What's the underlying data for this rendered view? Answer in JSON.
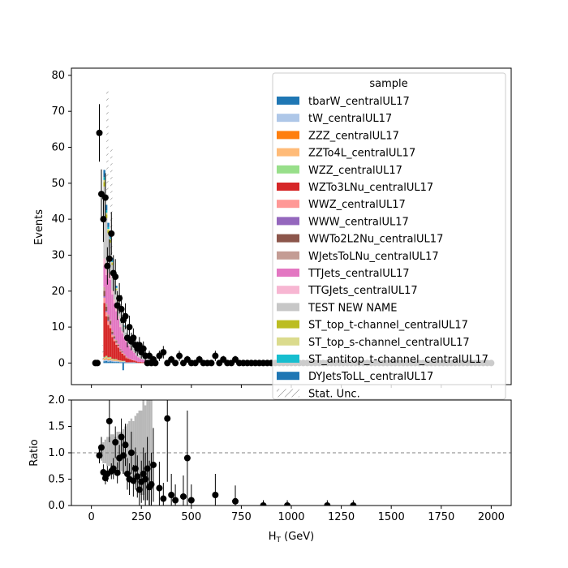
{
  "chart_data": [
    {
      "type": "bar",
      "panel": "main",
      "xlabel": "",
      "ylabel": "Events",
      "xlim": [
        -100,
        2100
      ],
      "ylim": [
        -6,
        82
      ],
      "xticks": [
        0,
        250,
        500,
        750,
        1000,
        1250,
        1500,
        1750,
        2000
      ],
      "yticks": [
        0,
        10,
        20,
        30,
        40,
        50,
        60,
        70,
        80
      ],
      "ytick_labels": [
        "0",
        "10",
        "20",
        "30",
        "40",
        "50",
        "60",
        "70",
        "80"
      ],
      "bin_width": 10,
      "bin_edges_start": 20,
      "legend_title": "sample",
      "legend_position": "top-right",
      "series": [
        {
          "name": "tbarW_centralUL17",
          "color": "#1f77b4",
          "values": [
            0,
            0,
            0,
            0,
            0.5,
            0.6,
            0.4,
            0.5,
            0.4,
            0.3,
            0.3,
            0.3,
            0.2,
            0.2,
            0.2,
            0.1,
            0.1,
            0.1,
            0.1,
            0.1,
            0.1,
            0,
            0,
            0,
            0,
            0,
            0,
            0,
            0,
            0
          ]
        },
        {
          "name": "tW_centralUL17",
          "color": "#aec7e8",
          "values": [
            0,
            0,
            0,
            0,
            0.4,
            0.5,
            0.4,
            0.4,
            0.3,
            0.3,
            0.3,
            0.2,
            0.2,
            0.2,
            0.2,
            0.1,
            0.1,
            0.1,
            0.1,
            0.1,
            0,
            0,
            0,
            0,
            0,
            0,
            0,
            0,
            0,
            0
          ]
        },
        {
          "name": "ZZZ_centralUL17",
          "color": "#ff7f0e",
          "values": [
            0,
            0,
            0,
            0,
            0.2,
            0.2,
            0.2,
            0.2,
            0.1,
            0.1,
            0.1,
            0.1,
            0.1,
            0,
            0,
            0,
            0,
            0,
            0,
            0,
            0,
            0,
            0,
            0,
            0,
            0,
            0,
            0,
            0,
            0
          ]
        },
        {
          "name": "ZZTo4L_centralUL17",
          "color": "#ffbb78",
          "values": [
            0,
            0,
            0,
            0,
            0.3,
            0.4,
            0.3,
            0.3,
            0.2,
            0.2,
            0.2,
            0.1,
            0.1,
            0.1,
            0.1,
            0,
            0,
            0,
            0,
            0,
            0,
            0,
            0,
            0,
            0,
            0,
            0,
            0,
            0,
            0
          ]
        },
        {
          "name": "WZZ_centralUL17",
          "color": "#98df8a",
          "values": [
            0,
            0,
            0,
            0,
            0.3,
            0.3,
            0.3,
            0.3,
            0.2,
            0.2,
            0.2,
            0.1,
            0.1,
            0.1,
            0.1,
            0,
            0,
            0,
            0,
            0,
            0,
            0,
            0,
            0,
            0,
            0,
            0,
            0,
            0,
            0
          ]
        },
        {
          "name": "WZTo3LNu_centralUL17",
          "color": "#d62728",
          "values": [
            0,
            0,
            0,
            0,
            15,
            11,
            9,
            8,
            6,
            5,
            4,
            3.5,
            2.5,
            2,
            1.5,
            1.2,
            1,
            0.8,
            0.6,
            0.5,
            0.4,
            0.3,
            0.3,
            0.2,
            0.2,
            0.1,
            0.1,
            0.1,
            0.1,
            0
          ]
        },
        {
          "name": "WWZ_centralUL17",
          "color": "#ff9896",
          "values": [
            0,
            0,
            0,
            0,
            1.5,
            1.2,
            1,
            0.9,
            0.7,
            0.6,
            0.5,
            0.4,
            0.3,
            0.3,
            0.2,
            0.2,
            0.1,
            0.1,
            0.1,
            0.1,
            0,
            0,
            0,
            0,
            0,
            0,
            0,
            0,
            0,
            0
          ]
        },
        {
          "name": "WWW_centralUL17",
          "color": "#9467bd",
          "values": [
            0,
            0,
            0,
            0,
            0.4,
            0.3,
            0.3,
            0.2,
            0.2,
            0.2,
            0.1,
            0.1,
            0.1,
            0.1,
            0,
            0,
            0,
            0,
            0,
            0,
            0,
            0,
            0,
            0,
            0,
            0,
            0,
            0,
            0,
            0
          ]
        },
        {
          "name": "WWTo2L2Nu_centralUL17",
          "color": "#8c564b",
          "values": [
            0,
            0,
            0,
            0,
            1.5,
            1.2,
            1,
            0.8,
            0.6,
            0.5,
            0.4,
            0.3,
            0.2,
            0.2,
            0.1,
            0.1,
            0.1,
            0,
            0,
            0,
            0,
            0,
            0,
            0,
            0,
            0,
            0,
            0,
            0,
            0
          ]
        },
        {
          "name": "WJetsToLNu_centralUL17",
          "color": "#c49c94",
          "values": [
            0,
            0,
            0,
            0,
            1,
            0.8,
            0.6,
            0.5,
            0.4,
            0.3,
            0.3,
            0.2,
            0.2,
            0.1,
            0.1,
            0.1,
            0,
            0,
            0,
            0,
            0,
            0,
            0,
            0,
            0,
            0,
            0,
            0,
            0,
            0
          ]
        },
        {
          "name": "TTJets_centralUL17",
          "color": "#e377c2",
          "values": [
            0,
            0,
            0,
            0,
            6,
            8,
            10,
            11,
            10,
            9,
            8,
            7,
            6,
            5,
            4.5,
            4,
            3.5,
            3,
            2.5,
            2,
            1.6,
            1.3,
            1,
            0.8,
            0.6,
            0.5,
            0.4,
            0.3,
            0.2,
            0.1
          ]
        },
        {
          "name": "TTGJets_centralUL17",
          "color": "#f7b6d2",
          "values": [
            0,
            0,
            0,
            0,
            2,
            1.8,
            1.6,
            1.4,
            1.2,
            1,
            0.9,
            0.8,
            0.7,
            0.6,
            0.5,
            0.4,
            0.3,
            0.3,
            0.2,
            0.2,
            0.1,
            0.1,
            0.1,
            0,
            0,
            0,
            0,
            0,
            0,
            0
          ]
        },
        {
          "name": "TEST NEW NAME",
          "color": "#c7c7c7",
          "values": [
            0,
            0,
            0,
            0,
            20,
            14,
            11,
            9,
            7,
            6,
            5,
            4,
            3.5,
            3,
            2.5,
            2,
            1.7,
            1.4,
            1.2,
            1,
            0.8,
            0.6,
            0.5,
            0.4,
            0.3,
            0.2,
            0.2,
            0.1,
            0.1,
            0
          ]
        },
        {
          "name": "ST_top_t-channel_centralUL17",
          "color": "#bcbd22",
          "values": [
            0,
            0,
            0,
            0,
            1.2,
            1,
            0.8,
            0.7,
            0.5,
            0.4,
            0.3,
            0.3,
            0.2,
            0.2,
            0.1,
            0.1,
            0.1,
            0,
            0,
            0,
            0,
            0,
            0,
            0,
            0,
            0,
            0,
            0,
            0,
            0
          ]
        },
        {
          "name": "ST_top_s-channel_centralUL17",
          "color": "#dbdb8d",
          "values": [
            0,
            0,
            0,
            0,
            0.6,
            0.5,
            0.4,
            0.3,
            0.3,
            0.2,
            0.2,
            0.1,
            0.1,
            0.1,
            0,
            0,
            0,
            0,
            0,
            0,
            0,
            0,
            0,
            0,
            0,
            0,
            0,
            0,
            0,
            0
          ]
        },
        {
          "name": "ST_antitop_t-channel_centralUL17",
          "color": "#17becf",
          "values": [
            0,
            0,
            0,
            0,
            0.8,
            0.7,
            0.5,
            0.4,
            0.3,
            0.3,
            0.2,
            0.2,
            0.1,
            0.1,
            0.1,
            0,
            0,
            0,
            0,
            0,
            0,
            0,
            0,
            0,
            0,
            0,
            0,
            0,
            0,
            0
          ]
        },
        {
          "name": "DYJetsToLL_centralUL17",
          "color": "#1f77b4",
          "values": [
            0,
            0,
            0,
            0,
            2,
            1.5,
            1.2,
            1,
            0.8,
            0.6,
            0.5,
            0.4,
            0.3,
            0.2,
            0.2,
            0.1,
            0.1,
            0.1,
            0,
            0,
            0,
            0,
            0,
            0,
            0,
            0,
            0,
            0,
            0,
            0
          ]
        }
      ],
      "negative_bars": [
        {
          "x": 155,
          "value": -2,
          "color": "#1f77b4"
        }
      ],
      "stat_unc": {
        "name": "Stat. Unc.",
        "hatch_color": "#777777",
        "bins": [
          [
            60,
            0,
            5
          ],
          [
            80,
            45,
            76
          ],
          [
            100,
            30,
            60
          ]
        ]
      },
      "data_points": {
        "x": [
          20,
          30,
          40,
          50,
          60,
          70,
          80,
          90,
          100,
          110,
          120,
          130,
          140,
          150,
          160,
          170,
          180,
          190,
          200,
          210,
          220,
          230,
          240,
          250,
          260,
          270,
          280,
          290,
          300,
          310,
          320,
          340,
          360,
          380,
          400,
          420,
          440,
          460,
          480,
          500,
          520,
          540,
          560,
          580,
          600,
          620,
          640,
          660,
          680,
          700,
          720,
          740,
          760,
          780,
          800,
          820,
          840,
          860,
          880,
          900,
          920,
          940,
          960,
          980,
          1000,
          1020,
          1040,
          1060,
          1080,
          1100,
          1120,
          1140,
          1160,
          1180,
          1200,
          1220,
          1240,
          1260,
          1280,
          1300,
          1320,
          1340,
          1360,
          1380,
          1400,
          1420,
          1440,
          1460,
          1480,
          1500,
          1520,
          1540,
          1560,
          1580,
          1600,
          1620,
          1640,
          1660,
          1680,
          1700,
          1720,
          1740,
          1760,
          1780,
          1800,
          1820,
          1840,
          1860,
          1880,
          1900,
          1920,
          1940,
          1960,
          1980,
          2000
        ],
        "y": [
          0,
          0,
          64,
          47,
          40,
          46,
          27,
          29,
          36,
          25,
          24,
          16,
          18,
          15,
          12,
          13,
          7,
          10,
          6,
          7,
          5,
          4,
          5,
          3,
          4,
          2,
          0,
          2,
          0,
          1,
          0,
          2,
          3,
          0,
          1,
          0,
          2,
          0,
          1,
          0,
          0,
          1,
          0,
          0,
          0,
          2,
          0,
          1,
          0,
          0,
          1,
          0,
          0,
          0,
          0,
          0,
          0,
          0,
          0,
          0,
          0,
          0,
          0,
          0,
          0,
          0,
          0,
          0,
          0,
          0,
          0,
          0,
          0,
          0,
          0,
          0,
          0,
          0,
          0,
          0,
          0,
          0,
          0,
          0,
          0,
          0,
          0,
          0,
          0,
          0,
          0,
          0,
          0,
          0,
          0,
          0,
          0,
          0,
          0,
          0,
          0,
          0,
          0,
          0,
          0,
          0,
          0,
          0,
          0,
          0,
          0,
          0,
          0,
          0,
          0
        ],
        "color": "#000000"
      }
    },
    {
      "type": "scatter",
      "panel": "ratio",
      "xlabel": "H$_T$ (GeV)",
      "ylabel": "Ratio",
      "xlim": [
        -100,
        2100
      ],
      "ylim": [
        0,
        2
      ],
      "xticks": [
        0,
        250,
        500,
        750,
        1000,
        1250,
        1500,
        1750,
        2000
      ],
      "xtick_labels": [
        "0",
        "250",
        "500",
        "750",
        "1000",
        "1250",
        "1500",
        "1750",
        "2000"
      ],
      "yticks": [
        0.0,
        0.5,
        1.0,
        1.5,
        2.0
      ],
      "ytick_labels": [
        "0.0",
        "0.5",
        "1.0",
        "1.5",
        "2.0"
      ],
      "reference_line": 1.0,
      "stat_band": {
        "color": "#b8b8b8",
        "bins": [
          [
            40,
            0.9,
            1.1
          ],
          [
            50,
            0.85,
            1.15
          ],
          [
            60,
            0.8,
            1.2
          ],
          [
            70,
            0.8,
            1.25
          ],
          [
            80,
            0.75,
            1.3
          ],
          [
            90,
            0.75,
            1.3
          ],
          [
            100,
            0.7,
            1.35
          ],
          [
            110,
            0.7,
            1.35
          ],
          [
            120,
            0.7,
            1.3
          ],
          [
            130,
            0.7,
            1.4
          ],
          [
            140,
            0.65,
            1.4
          ],
          [
            150,
            0.65,
            1.4
          ],
          [
            160,
            0.6,
            1.45
          ],
          [
            170,
            0.6,
            1.5
          ],
          [
            180,
            0.55,
            1.55
          ],
          [
            190,
            0.5,
            1.6
          ],
          [
            200,
            0.45,
            1.65
          ],
          [
            210,
            0.45,
            1.6
          ],
          [
            220,
            0.4,
            1.7
          ],
          [
            230,
            0.35,
            1.75
          ],
          [
            240,
            0.3,
            1.8
          ],
          [
            250,
            0.2,
            1.8
          ],
          [
            260,
            0.2,
            2.0
          ],
          [
            270,
            0.1,
            1.9
          ],
          [
            280,
            0.1,
            2.0
          ],
          [
            290,
            0.0,
            2.0
          ],
          [
            300,
            0.3,
            2.0
          ]
        ]
      },
      "data_points": {
        "x": [
          40,
          50,
          60,
          70,
          80,
          90,
          100,
          110,
          120,
          130,
          140,
          150,
          160,
          170,
          180,
          190,
          200,
          210,
          220,
          230,
          240,
          250,
          260,
          270,
          280,
          290,
          300,
          310,
          340,
          360,
          380,
          400,
          420,
          460,
          480,
          500,
          620,
          720,
          860,
          980,
          1180,
          1310
        ],
        "y": [
          0.95,
          1.1,
          0.63,
          0.52,
          0.6,
          1.6,
          0.65,
          0.7,
          1.2,
          0.62,
          0.9,
          1.3,
          0.95,
          1.15,
          0.6,
          0.5,
          1.0,
          0.47,
          0.7,
          0.55,
          0.3,
          0.45,
          0.6,
          0.5,
          0.7,
          0.35,
          0.4,
          0.77,
          0.33,
          0.13,
          1.65,
          0.2,
          0.1,
          0.17,
          0.9,
          0.1,
          0.2,
          0.08,
          0.0,
          0.0,
          0.0,
          0.0
        ],
        "err": [
          0.15,
          0.2,
          0.15,
          0.12,
          0.15,
          0.4,
          0.15,
          0.2,
          0.3,
          0.2,
          0.25,
          0.35,
          0.35,
          0.4,
          0.3,
          0.3,
          0.4,
          0.3,
          0.4,
          0.4,
          0.3,
          0.4,
          0.5,
          0.5,
          0.6,
          0.5,
          0.6,
          0.7,
          0.5,
          0.3,
          1.2,
          0.4,
          0.3,
          0.4,
          0.9,
          0.3,
          0.4,
          0.3,
          0.1,
          0.1,
          0.1,
          0.1
        ],
        "color": "#000000"
      }
    }
  ]
}
